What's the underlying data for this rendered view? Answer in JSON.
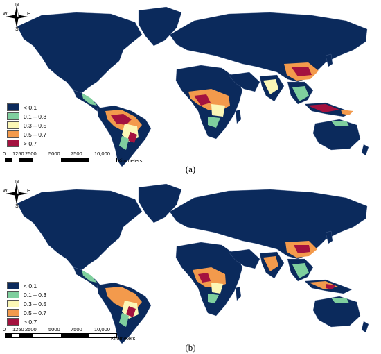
{
  "panels": [
    {
      "id": "a",
      "caption": "(a)",
      "compass": {
        "n": "N",
        "s": "S",
        "e": "E",
        "w": "W"
      },
      "legend": [
        {
          "label": "< 0.1",
          "color": "#0b2a5c"
        },
        {
          "label": "0.1 – 0.3",
          "color": "#7fcf9e"
        },
        {
          "label": "0.3 – 0.5",
          "color": "#fbf7b6"
        },
        {
          "label": "0.5 – 0.7",
          "color": "#f39a4c"
        },
        {
          "label": "> 0.7",
          "color": "#a4123f"
        }
      ],
      "scale": {
        "ticks": [
          "0",
          "1250",
          "2500",
          "5000",
          "7500",
          "10,000"
        ],
        "unit": "Kilometers"
      }
    },
    {
      "id": "b",
      "caption": "(b)",
      "compass": {
        "n": "N",
        "s": "S",
        "e": "E",
        "w": "W"
      },
      "legend": [
        {
          "label": "< 0.1",
          "color": "#0b2a5c"
        },
        {
          "label": "0.1 – 0.3",
          "color": "#7fcf9e"
        },
        {
          "label": "0.3 – 0.5",
          "color": "#fbf7b6"
        },
        {
          "label": "0.5 – 0.7",
          "color": "#f39a4c"
        },
        {
          "label": "> 0.7",
          "color": "#a4123f"
        }
      ],
      "scale": {
        "ticks": [
          "0",
          "1250",
          "2500",
          "5000",
          "7500",
          "10,000"
        ],
        "unit": "Kilometers"
      }
    }
  ],
  "colors": {
    "land_base": "#0b2a5c",
    "low": "#7fcf9e",
    "mid": "#fbf7b6",
    "high": "#f39a4c",
    "very_high": "#a4123f",
    "border": "#6b7fa6"
  }
}
